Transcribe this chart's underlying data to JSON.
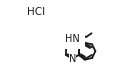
{
  "background_color": "#ffffff",
  "line_color": "#1a1a1a",
  "line_width": 1.3,
  "text_color": "#1a1a1a",
  "hcl_label": "HCl",
  "hn_label": "HN",
  "n_label": "N",
  "font_size": 7.0,
  "fig_width": 1.33,
  "fig_height": 0.8,
  "dpi": 100
}
